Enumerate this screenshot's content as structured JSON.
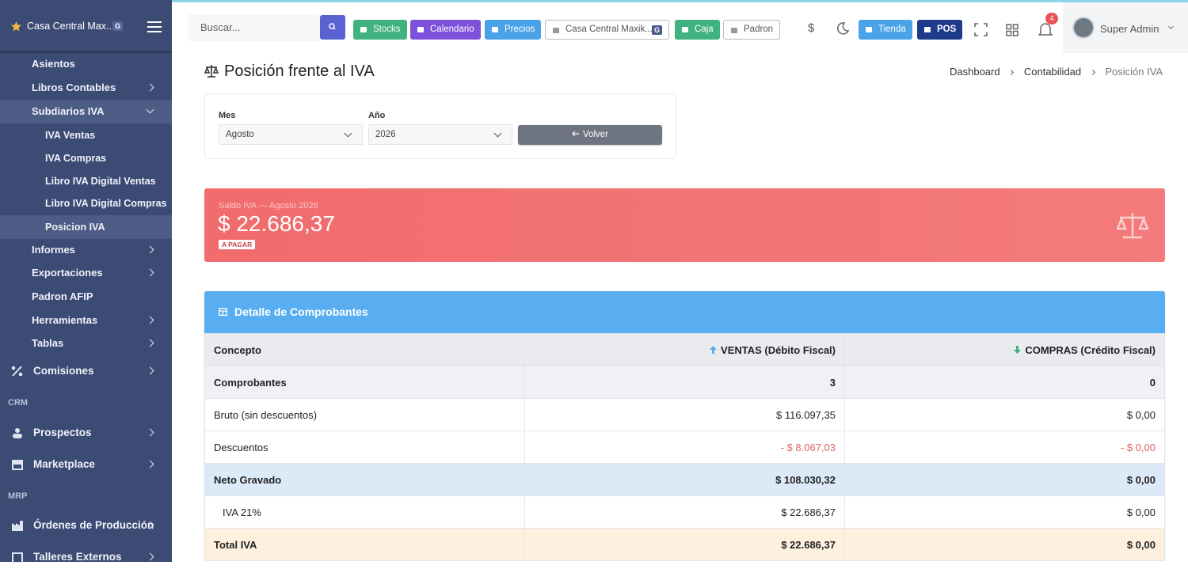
{
  "sidebar": {
    "brand": "Casa Central Max...",
    "brand_badge": "G",
    "items": [
      "Asientos",
      "Libros Contables",
      "Subdiarios IVA",
      "IVA Ventas",
      "IVA Compras",
      "Libro IVA Digital Ventas",
      "Libro IVA Digital Compras",
      "Posicion IVA",
      "Informes",
      "Exportaciones",
      "Padron AFIP",
      "Herramientas",
      "Tablas",
      "Comisiones"
    ],
    "sections": [
      "CRM",
      "MRP"
    ],
    "crm_items": [
      "Prospectos",
      "Marketplace"
    ],
    "mrp_items": [
      "Órdenes de Producción",
      "Talleres Externos"
    ]
  },
  "topbar": {
    "search_placeholder": "Buscar...",
    "buttons": [
      "Stocks",
      "Calendario",
      "Precios"
    ],
    "branch": "Casa Central Maxik...",
    "branch_badge": "G",
    "buttons2": [
      "Caja",
      "Padron"
    ],
    "currency": "$",
    "store": "Tienda",
    "pos": "POS",
    "notifications": "4",
    "user": "Super Admin"
  },
  "header": {
    "title": "Posición frente al IVA",
    "breadcrumb": [
      "Dashboard",
      "Contabilidad",
      "Posición IVA"
    ]
  },
  "filters": {
    "month_label": "Mes",
    "month": "Agosto",
    "year_label": "Año",
    "year": "2026",
    "back": "Volver"
  },
  "balance": {
    "caption": "Saldo IVA — Agosto 2026",
    "amount": "$ 22.686,37",
    "status": "A PAGAR"
  },
  "table": {
    "title": "Detalle de Comprobantes",
    "columns": [
      "Concepto",
      "VENTAS (Débito Fiscal)",
      "COMPRAS (Crédito Fiscal)"
    ],
    "rows": [
      [
        "Comprobantes",
        "3",
        "0"
      ],
      [
        "Bruto (sin descuentos)",
        "$ 116.097,35",
        "$ 0,00"
      ],
      [
        "Descuentos",
        "- $ 8.067,03",
        "- $ 0,00"
      ],
      [
        "Neto Gravado",
        "$ 108.030,32",
        "$ 0,00"
      ],
      [
        "IVA 21%",
        "$ 22.686,37",
        "$ 0,00"
      ],
      [
        "Total IVA",
        "$ 22.686,37",
        "$ 0,00"
      ]
    ]
  }
}
